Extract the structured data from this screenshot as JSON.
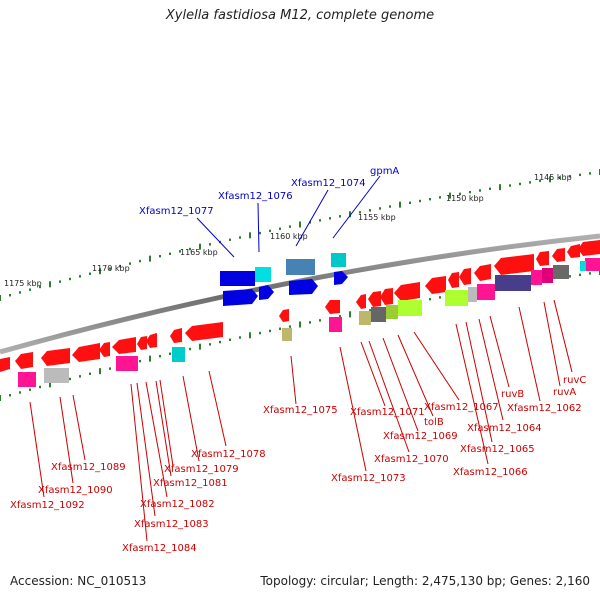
{
  "title": "Xylella fastidiosa M12, complete genome",
  "footer": {
    "accession": "Accession: NC_010513",
    "info": "Topology: circular; Length: 2,475,130 bp; Genes: 2,160"
  },
  "colors": {
    "forward_label": "#0000cc",
    "reverse_label": "#cc0000",
    "tick": "#2f7d2f",
    "backbone": "#8a8a8a"
  },
  "kbp_labels": [
    "1145 kbp",
    "1150 kbp",
    "1155 kbp",
    "1160 kbp",
    "1165 kbp",
    "1170 kbp",
    "1175 kbp"
  ],
  "forward_genes": [
    "gpmA",
    "Xfasm12_1074",
    "Xfasm12_1076",
    "Xfasm12_1077"
  ],
  "reverse_genes": [
    "ruvC",
    "ruvA",
    "ruvB",
    "Xfasm12_1062",
    "Xfasm12_1064",
    "Xfasm12_1065",
    "Xfasm12_1066",
    "Xfasm12_1067",
    "tolB",
    "Xfasm12_1069",
    "Xfasm12_1070",
    "Xfasm12_1071",
    "Xfasm12_1073",
    "Xfasm12_1075",
    "Xfasm12_1078",
    "Xfasm12_1079",
    "Xfasm12_1081",
    "Xfasm12_1082",
    "Xfasm12_1083",
    "Xfasm12_1084",
    "Xfasm12_1089",
    "Xfasm12_1090",
    "Xfasm12_1092"
  ]
}
